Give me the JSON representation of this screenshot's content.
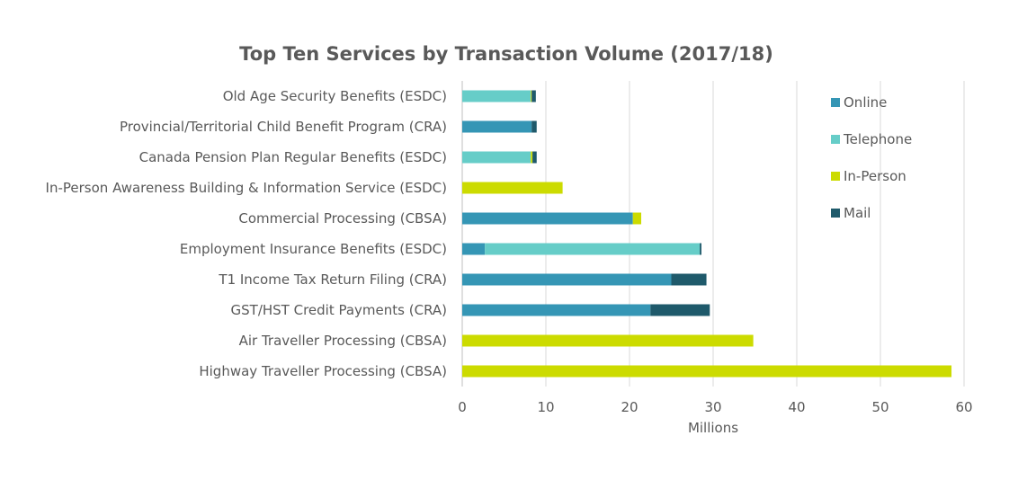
{
  "chart_data": {
    "type": "bar",
    "orientation": "horizontal",
    "stacked": true,
    "title": "Top Ten Services by Transaction Volume (2017/18)",
    "xlabel": "Millions",
    "ylabel": "",
    "xlim": [
      0,
      60
    ],
    "xticks": [
      0,
      10,
      20,
      30,
      40,
      50,
      60
    ],
    "grid": true,
    "legend_position": "top-right",
    "categories": [
      "Old Age Security Benefits (ESDC)",
      "Provincial/Territorial Child Benefit Program (CRA)",
      "Canada Pension Plan Regular Benefits (ESDC)",
      "In-Person Awareness Building & Information Service (ESDC)",
      "Commercial Processing (CBSA)",
      "Employment Insurance Benefits (ESDC)",
      "T1 Income Tax Return Filing (CRA)",
      "GST/HST Credit Payments (CRA)",
      "Air Traveller Processing (CBSA)",
      "Highway Traveller Processing (CBSA)"
    ],
    "series": [
      {
        "name": "Online",
        "color": "#3596b5",
        "values": [
          0,
          8.3,
          0,
          0,
          20.4,
          2.7,
          25.0,
          22.5,
          0,
          0
        ]
      },
      {
        "name": "Telephone",
        "color": "#66cdc8",
        "values": [
          8.2,
          0,
          8.2,
          0,
          0,
          25.7,
          0,
          0,
          0,
          0
        ]
      },
      {
        "name": "In-Person",
        "color": "#ccdb00",
        "values": [
          0.1,
          0,
          0.2,
          12.0,
          1.0,
          0,
          0,
          0,
          34.8,
          58.5
        ]
      },
      {
        "name": "Mail",
        "color": "#1f5a6b",
        "values": [
          0.5,
          0.6,
          0.5,
          0,
          0,
          0.2,
          4.2,
          7.1,
          0,
          0
        ]
      }
    ]
  }
}
